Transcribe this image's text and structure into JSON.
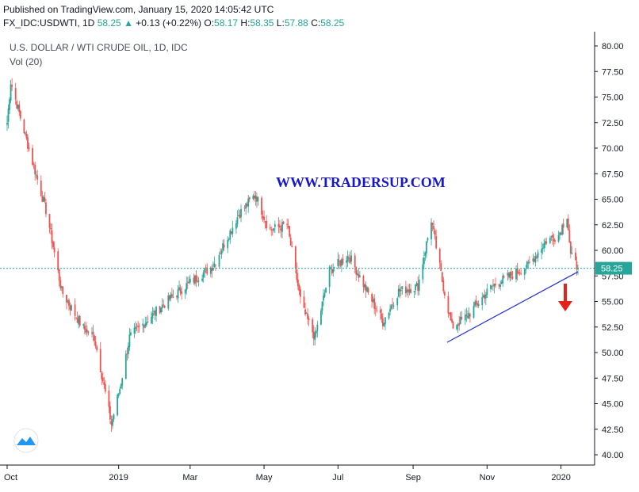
{
  "header": {
    "published": "Published on TradingView.com, January 15, 2020 14:05:42 UTC",
    "symbol": "FX_IDC:USDWTI, 1D",
    "last": "58.25",
    "change": "+0.13 (+0.22%)",
    "o_label": "O:",
    "o_value": "58.17",
    "h_label": "H:",
    "h_value": "58.35",
    "l_label": "L:",
    "l_value": "57.88",
    "c_label": "C:",
    "c_value": "58.25"
  },
  "legend": {
    "title": "U.S. DOLLAR / WTI CRUDE OIL, 1D, IDC",
    "indicator": "Vol (20)"
  },
  "watermark": "WWW.TRADERSUP.COM",
  "price_label": "58.25",
  "colors": {
    "up": "#26a69a",
    "down": "#ef5350",
    "trendline": "#1f2fd1",
    "arrow": "#e3221b",
    "price_line": "#26a69a"
  },
  "chart_data": {
    "type": "candlestick",
    "ylim": [
      40,
      80
    ],
    "y_ticks": [
      "80.00",
      "77.50",
      "75.00",
      "72.50",
      "70.00",
      "67.50",
      "65.00",
      "62.50",
      "60.00",
      "57.50",
      "55.00",
      "52.50",
      "50.00",
      "47.50",
      "45.00",
      "42.50",
      "40.00"
    ],
    "x_ticks": [
      "Oct",
      "2019",
      "Mar",
      "May",
      "Jul",
      "Sep",
      "Nov",
      "2020"
    ],
    "anchors": [
      {
        "date": "2018-10-01",
        "close": 72.5
      },
      {
        "date": "2018-10-04",
        "close": 76.5
      },
      {
        "date": "2018-10-20",
        "close": 69.5
      },
      {
        "date": "2018-11-03",
        "close": 63.5
      },
      {
        "date": "2018-11-15",
        "close": 56.0
      },
      {
        "date": "2018-12-02",
        "close": 52.5
      },
      {
        "date": "2018-12-12",
        "close": 51.5
      },
      {
        "date": "2018-12-26",
        "close": 43.0
      },
      {
        "date": "2019-01-02",
        "close": 46.5
      },
      {
        "date": "2019-01-10",
        "close": 51.5
      },
      {
        "date": "2019-02-05",
        "close": 54.5
      },
      {
        "date": "2019-02-25",
        "close": 56.5
      },
      {
        "date": "2019-03-20",
        "close": 58.5
      },
      {
        "date": "2019-04-10",
        "close": 63.5
      },
      {
        "date": "2019-04-24",
        "close": 65.5
      },
      {
        "date": "2019-05-05",
        "close": 62.0
      },
      {
        "date": "2019-05-20",
        "close": 62.5
      },
      {
        "date": "2019-06-01",
        "close": 54.5
      },
      {
        "date": "2019-06-12",
        "close": 51.5
      },
      {
        "date": "2019-06-24",
        "close": 58.0
      },
      {
        "date": "2019-07-10",
        "close": 59.5
      },
      {
        "date": "2019-07-25",
        "close": 56.0
      },
      {
        "date": "2019-08-07",
        "close": 53.0
      },
      {
        "date": "2019-08-20",
        "close": 56.0
      },
      {
        "date": "2019-09-05",
        "close": 56.5
      },
      {
        "date": "2019-09-16",
        "close": 63.0
      },
      {
        "date": "2019-09-25",
        "close": 57.0
      },
      {
        "date": "2019-10-03",
        "close": 52.5
      },
      {
        "date": "2019-10-15",
        "close": 53.5
      },
      {
        "date": "2019-11-05",
        "close": 56.5
      },
      {
        "date": "2019-11-20",
        "close": 57.5
      },
      {
        "date": "2019-12-05",
        "close": 58.5
      },
      {
        "date": "2019-12-20",
        "close": 61.0
      },
      {
        "date": "2019-12-30",
        "close": 61.5
      },
      {
        "date": "2020-01-06",
        "close": 63.5
      },
      {
        "date": "2020-01-09",
        "close": 59.5
      },
      {
        "date": "2020-01-15",
        "close": 58.25
      }
    ],
    "last_price": 58.25,
    "trendline": [
      {
        "date": "2019-09-29",
        "price": 51.0
      },
      {
        "date": "2020-01-15",
        "price": 57.9
      }
    ]
  }
}
